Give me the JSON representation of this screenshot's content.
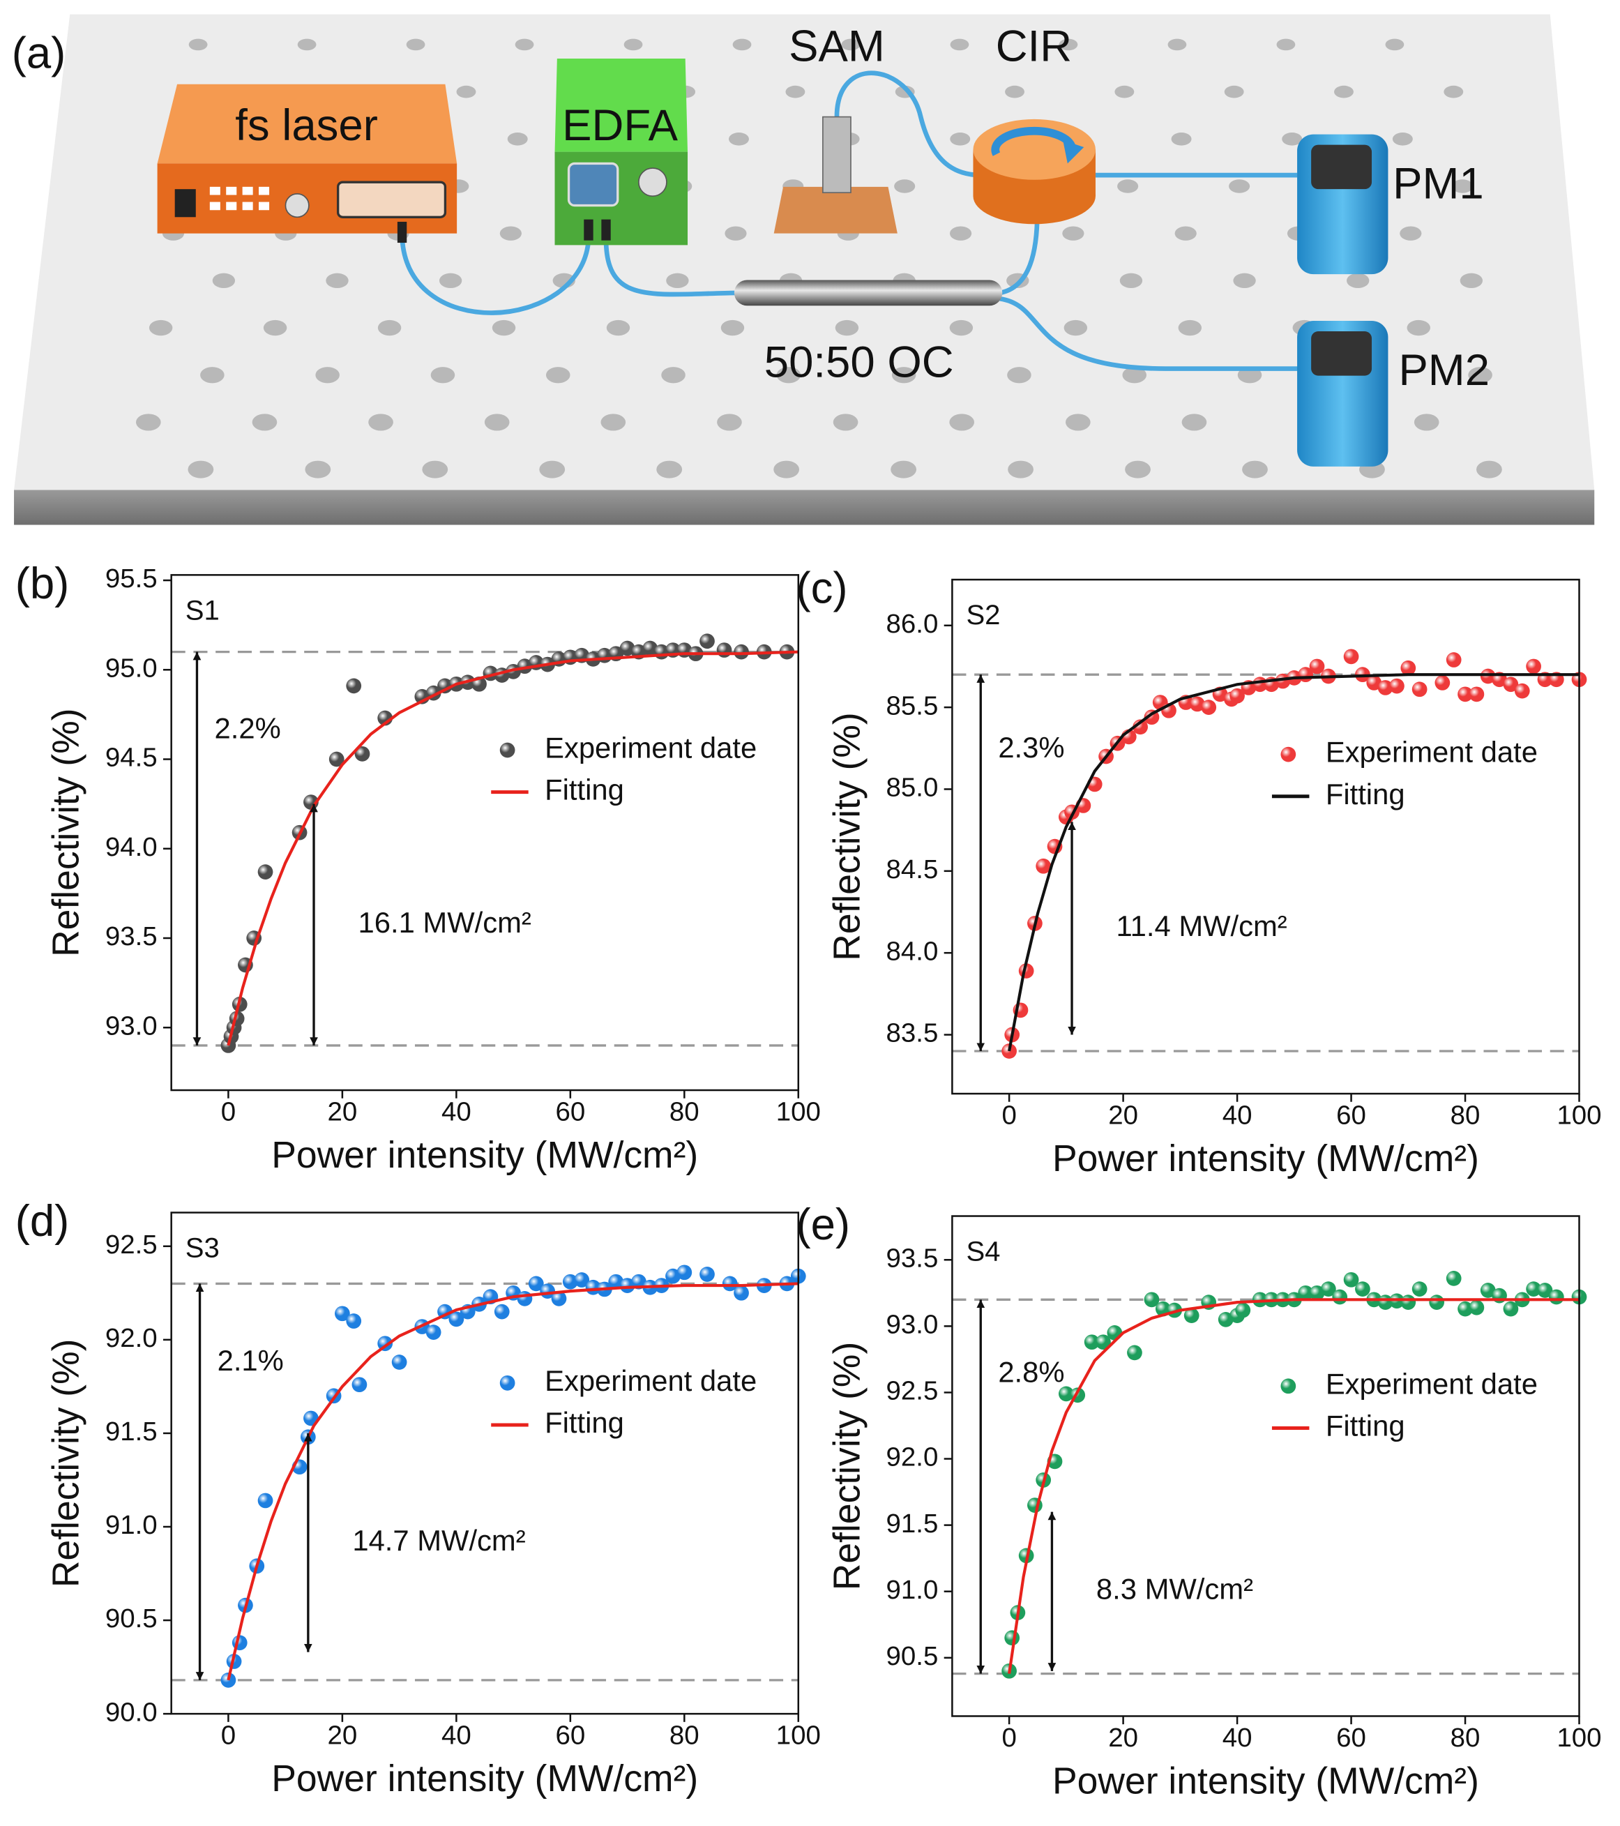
{
  "diagram": {
    "panel_label": "(a)",
    "components": [
      {
        "label": "fs laser"
      },
      {
        "label": "EDFA"
      },
      {
        "label": "SAM"
      },
      {
        "label": "CIR"
      },
      {
        "label": "PM1"
      },
      {
        "label": "50:50 OC"
      },
      {
        "label": "PM2"
      }
    ]
  },
  "chart_data": [
    {
      "type": "scatter",
      "panel_label": "(b)",
      "sample_label": "S1",
      "xlabel": "Power intensity (MW/cm²)",
      "ylabel": "Reflectivity (%)",
      "xlim": [
        -10,
        100
      ],
      "ylim": [
        92.65,
        95.53
      ],
      "xticks": [
        0,
        20,
        40,
        60,
        80,
        100
      ],
      "yticks": [
        {
          "value": 93,
          "label": "93.0"
        },
        93.5,
        {
          "value": 94,
          "label": "94.0"
        },
        94.5,
        {
          "value": 95,
          "label": "95.0"
        },
        95.5
      ],
      "hlines": [
        95.1,
        92.9
      ],
      "legend": "center right",
      "series": [
        {
          "name": "Experiment date",
          "type": "scatter",
          "color": "#4d4d4d",
          "x": [
            0,
            0.5,
            1,
            1.5,
            2,
            3,
            4.5,
            6.5,
            12.5,
            14.5,
            19,
            22,
            23.5,
            27.5,
            34,
            36,
            38,
            40,
            42,
            44,
            46,
            48,
            50,
            52,
            54,
            56,
            58,
            60,
            62,
            64,
            66,
            68,
            70,
            72,
            74,
            76,
            78,
            80,
            82,
            84,
            87,
            90,
            94,
            98
          ],
          "values": [
            92.9,
            92.95,
            93.0,
            93.05,
            93.13,
            93.35,
            93.5,
            93.87,
            94.09,
            94.26,
            94.5,
            94.91,
            94.53,
            94.73,
            94.85,
            94.87,
            94.91,
            94.92,
            94.93,
            94.92,
            94.98,
            94.97,
            94.99,
            95.02,
            95.04,
            95.03,
            95.06,
            95.07,
            95.08,
            95.06,
            95.08,
            95.09,
            95.12,
            95.1,
            95.12,
            95.1,
            95.11,
            95.11,
            95.09,
            95.16,
            95.11,
            95.1,
            95.1,
            95.1
          ]
        },
        {
          "name": "Fitting",
          "type": "line",
          "color": "#e8221c",
          "x": [
            0,
            2.5,
            5,
            7.5,
            10,
            15,
            20,
            25,
            30,
            40,
            50,
            60,
            70,
            80,
            90,
            100
          ],
          "values": [
            92.9,
            93.22,
            93.49,
            93.72,
            93.92,
            94.24,
            94.47,
            94.64,
            94.76,
            94.92,
            95.0,
            95.05,
            95.07,
            95.09,
            95.09,
            95.1
          ]
        }
      ],
      "annotations": [
        {
          "text": "2.2%",
          "x": -5.5,
          "y": [
            92.9,
            95.1
          ]
        },
        {
          "text": "16.1 MW/cm²",
          "x": 15,
          "y": [
            92.9,
            94.25
          ]
        }
      ]
    },
    {
      "type": "scatter",
      "panel_label": "(c)",
      "sample_label": "S2",
      "xlabel": "Power intensity (MW/cm²)",
      "ylabel": "Reflectivity (%)",
      "xlim": [
        -10,
        100
      ],
      "ylim": [
        83.14,
        86.28
      ],
      "xticks": [
        0,
        20,
        40,
        60,
        80,
        100
      ],
      "yticks": [
        83.5,
        {
          "value": 84,
          "label": "84.0"
        },
        84.5,
        {
          "value": 85,
          "label": "85.0"
        },
        85.5,
        {
          "value": 86,
          "label": "86.0"
        }
      ],
      "hlines": [
        85.7,
        83.4
      ],
      "legend": "center right",
      "series": [
        {
          "name": "Experiment date",
          "type": "scatter",
          "color": "#ee3a3a",
          "x": [
            0,
            0.5,
            2,
            3,
            4.5,
            6,
            8,
            10,
            11,
            13,
            15,
            17,
            19,
            21,
            23,
            25,
            26.5,
            28,
            31,
            33,
            35,
            37,
            39,
            40,
            42,
            44,
            46,
            48,
            50,
            52,
            54,
            56,
            60,
            62,
            64,
            66,
            68,
            70,
            72,
            76,
            78,
            80,
            82,
            84,
            86,
            88,
            90,
            92,
            94,
            96,
            100
          ],
          "values": [
            83.4,
            83.5,
            83.65,
            83.89,
            84.18,
            84.53,
            84.65,
            84.83,
            84.86,
            84.9,
            85.03,
            85.2,
            85.28,
            85.32,
            85.38,
            85.44,
            85.53,
            85.48,
            85.53,
            85.52,
            85.5,
            85.58,
            85.55,
            85.57,
            85.62,
            85.64,
            85.64,
            85.66,
            85.68,
            85.7,
            85.75,
            85.69,
            85.81,
            85.7,
            85.65,
            85.62,
            85.63,
            85.74,
            85.61,
            85.65,
            85.79,
            85.58,
            85.58,
            85.69,
            85.67,
            85.64,
            85.6,
            85.75,
            85.67,
            85.67,
            85.67
          ]
        },
        {
          "name": "Fitting",
          "type": "line",
          "color": "#111111",
          "x": [
            0,
            2.5,
            5,
            7.5,
            10,
            15,
            20,
            25,
            30,
            40,
            50,
            60,
            70,
            80,
            90,
            100
          ],
          "values": [
            83.4,
            83.87,
            84.24,
            84.54,
            84.77,
            85.11,
            85.33,
            85.46,
            85.55,
            85.64,
            85.68,
            85.69,
            85.7,
            85.7,
            85.7,
            85.7
          ]
        }
      ],
      "annotations": [
        {
          "text": "2.3%",
          "x": -5,
          "y": [
            83.4,
            85.7
          ]
        },
        {
          "text": "11.4 MW/cm²",
          "x": 11,
          "y": [
            83.5,
            84.8
          ]
        }
      ]
    },
    {
      "type": "scatter",
      "panel_label": "(d)",
      "sample_label": "S3",
      "xlabel": "Power intensity (MW/cm²)",
      "ylabel": "Reflectivity (%)",
      "xlim": [
        -10,
        100
      ],
      "ylim": [
        90.0,
        92.68
      ],
      "xticks": [
        0,
        20,
        40,
        60,
        80,
        100
      ],
      "yticks": [
        {
          "value": 90,
          "label": "90.0"
        },
        90.5,
        {
          "value": 91,
          "label": "91.0"
        },
        91.5,
        {
          "value": 92,
          "label": "92.0"
        },
        92.5
      ],
      "hlines": [
        92.3,
        90.18
      ],
      "legend": "center right",
      "series": [
        {
          "name": "Experiment date",
          "type": "scatter",
          "color": "#1e7fe0",
          "x": [
            0,
            1,
            2,
            3,
            5,
            6.5,
            12.5,
            14,
            14.5,
            18.5,
            20,
            22,
            23,
            27.5,
            30,
            34,
            36,
            38,
            40,
            42,
            44,
            46,
            48,
            50,
            52,
            54,
            56,
            58,
            60,
            62,
            64,
            66,
            68,
            70,
            72,
            74,
            76,
            78,
            80,
            84,
            88,
            90,
            94,
            98,
            100
          ],
          "values": [
            90.18,
            90.28,
            90.38,
            90.58,
            90.79,
            91.14,
            91.32,
            91.48,
            91.58,
            91.7,
            92.14,
            92.1,
            91.76,
            91.98,
            91.88,
            92.07,
            92.04,
            92.15,
            92.11,
            92.15,
            92.19,
            92.23,
            92.15,
            92.25,
            92.22,
            92.3,
            92.26,
            92.22,
            92.31,
            92.32,
            92.28,
            92.27,
            92.31,
            92.29,
            92.31,
            92.28,
            92.29,
            92.34,
            92.36,
            92.35,
            92.3,
            92.25,
            92.29,
            92.3,
            92.34
          ]
        },
        {
          "name": "Fitting",
          "type": "line",
          "color": "#e8221c",
          "x": [
            0,
            2.5,
            5,
            7.5,
            10,
            15,
            20,
            25,
            30,
            40,
            50,
            60,
            70,
            80,
            90,
            100
          ],
          "values": [
            90.18,
            90.51,
            90.79,
            91.03,
            91.23,
            91.54,
            91.75,
            91.91,
            92.02,
            92.16,
            92.23,
            92.26,
            92.28,
            92.29,
            92.29,
            92.3
          ]
        }
      ],
      "annotations": [
        {
          "text": "2.1%",
          "x": -5,
          "y": [
            90.18,
            92.3
          ]
        },
        {
          "text": "14.7 MW/cm²",
          "x": 14,
          "y": [
            90.33,
            91.5
          ]
        }
      ]
    },
    {
      "type": "scatter",
      "panel_label": "(e)",
      "sample_label": "S4",
      "xlabel": "Power intensity (MW/cm²)",
      "ylabel": "Reflectivity (%)",
      "xlim": [
        -10,
        100
      ],
      "ylim": [
        90.06,
        93.83
      ],
      "xticks": [
        0,
        20,
        40,
        60,
        80,
        100
      ],
      "yticks": [
        90.5,
        {
          "value": 91,
          "label": "91.0"
        },
        91.5,
        {
          "value": 92,
          "label": "92.0"
        },
        92.5,
        {
          "value": 93,
          "label": "93.0"
        },
        93.5
      ],
      "hlines": [
        93.2,
        90.38
      ],
      "legend": "center right",
      "series": [
        {
          "name": "Experiment date",
          "type": "scatter",
          "color": "#1e9e5c",
          "x": [
            0,
            0.5,
            1.5,
            3,
            4.5,
            6,
            8,
            10,
            12,
            14.5,
            16.5,
            18.5,
            22,
            25,
            27,
            29,
            32,
            35,
            38,
            40,
            41,
            44,
            46,
            48,
            50,
            52,
            54,
            56,
            58,
            60,
            62,
            64,
            66,
            68,
            70,
            72,
            75,
            78,
            80,
            82,
            84,
            86,
            88,
            90,
            92,
            94,
            96,
            100
          ],
          "values": [
            90.4,
            90.65,
            90.84,
            91.27,
            91.65,
            91.84,
            91.98,
            92.49,
            92.48,
            92.88,
            92.88,
            92.95,
            92.8,
            93.2,
            93.13,
            93.12,
            93.08,
            93.18,
            93.05,
            93.08,
            93.12,
            93.2,
            93.2,
            93.2,
            93.2,
            93.25,
            93.25,
            93.28,
            93.22,
            93.35,
            93.28,
            93.2,
            93.18,
            93.19,
            93.18,
            93.28,
            93.18,
            93.36,
            93.13,
            93.14,
            93.27,
            93.23,
            93.13,
            93.2,
            93.28,
            93.27,
            93.22,
            93.22
          ]
        },
        {
          "name": "Fitting",
          "type": "line",
          "color": "#e8221c",
          "x": [
            0,
            2.5,
            5,
            7.5,
            10,
            15,
            20,
            25,
            30,
            40,
            50,
            60,
            70,
            80,
            90,
            100
          ],
          "values": [
            90.38,
            91.11,
            91.65,
            92.06,
            92.35,
            92.74,
            92.95,
            93.06,
            93.12,
            93.18,
            93.2,
            93.2,
            93.2,
            93.2,
            93.2,
            93.2
          ]
        }
      ],
      "annotations": [
        {
          "text": "2.8%",
          "x": -5,
          "y": [
            90.38,
            93.2
          ]
        },
        {
          "text": "8.3 MW/cm²",
          "x": 7.5,
          "y": [
            90.4,
            91.6
          ]
        }
      ]
    }
  ]
}
